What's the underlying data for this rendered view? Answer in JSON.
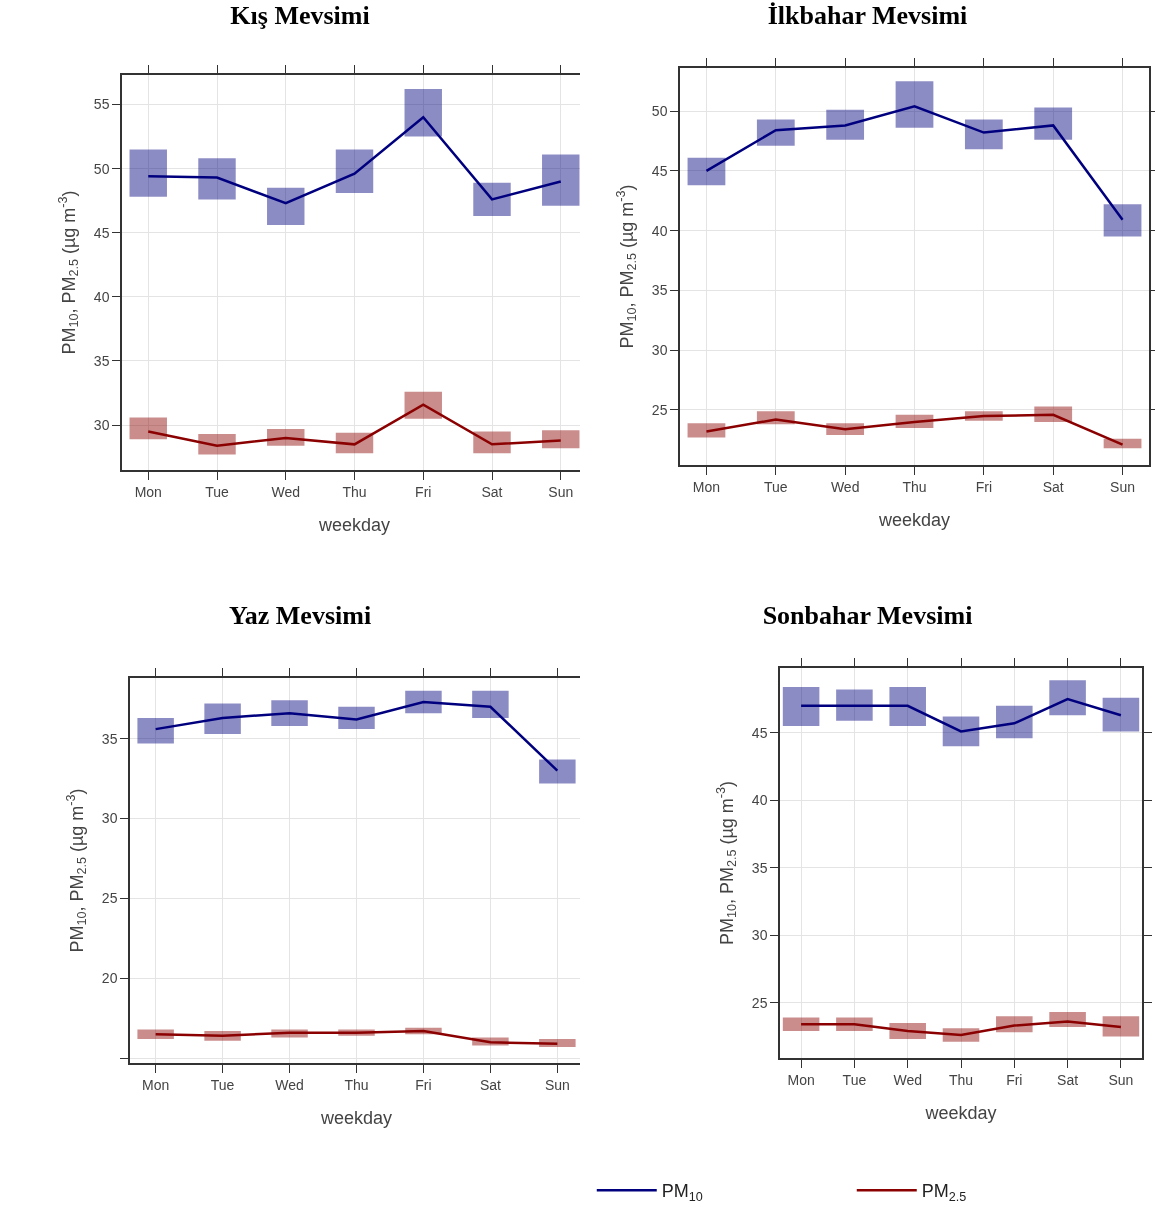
{
  "chart_data": [
    {
      "type": "line",
      "title": "Kış Mevsimi",
      "xlabel": "weekday",
      "ylabel": "PM$_{10}$, PM$_{2.5}$ (µg m$^{-3}$)",
      "categories": [
        "Mon",
        "Tue",
        "Wed",
        "Thu",
        "Fri",
        "Sat",
        "Sun"
      ],
      "ylim": [
        26.5,
        57.3
      ],
      "yticks": [
        30,
        35,
        40,
        45,
        50,
        55
      ],
      "grid": true,
      "series": [
        {
          "color": "#00007f",
          "values": [
            49.4,
            49.3,
            47.3,
            49.6,
            54,
            47.6,
            49
          ],
          "errors": [
            [
              47.8,
              51.5
            ],
            [
              47.6,
              50.8
            ],
            [
              45.6,
              48.5
            ],
            [
              48.1,
              51.5
            ],
            [
              52.5,
              56.2
            ],
            [
              46.3,
              48.9
            ],
            [
              47.1,
              51.1
            ]
          ]
        },
        {
          "color": "#8b0000",
          "values": [
            29.5,
            28.4,
            29,
            28.5,
            31.6,
            28.5,
            28.8
          ],
          "errors": [
            [
              28.9,
              30.6
            ],
            [
              27.7,
              29.3
            ],
            [
              28.4,
              29.7
            ],
            [
              27.8,
              29.4
            ],
            [
              30.5,
              32.6
            ],
            [
              27.8,
              29.5
            ],
            [
              28.2,
              29.6
            ]
          ]
        }
      ]
    },
    {
      "type": "line",
      "title": "İlkbahar Mevsimi",
      "xlabel": "weekday",
      "ylabel": "PM$_{10}$, PM$_{2.5}$ (µg m$^{-3}$)",
      "categories": [
        "Mon",
        "Tue",
        "Wed",
        "Thu",
        "Fri",
        "Sat",
        "Sun"
      ],
      "ylim": [
        20.4,
        53.6
      ],
      "yticks": [
        25,
        30,
        35,
        40,
        45,
        50
      ],
      "grid": true,
      "series": [
        {
          "color": "#00007f",
          "values": [
            45,
            48.4,
            48.8,
            50.4,
            48.2,
            48.8,
            40.9
          ],
          "errors": [
            [
              43.8,
              46.1
            ],
            [
              47.1,
              49.3
            ],
            [
              47.6,
              50.1
            ],
            [
              48.6,
              52.5
            ],
            [
              46.8,
              49.3
            ],
            [
              47.6,
              50.3
            ],
            [
              39.5,
              42.2
            ]
          ]
        },
        {
          "color": "#8b0000",
          "values": [
            23.2,
            24.2,
            23.4,
            24,
            24.5,
            24.6,
            22.1
          ],
          "errors": [
            [
              22.7,
              23.9
            ],
            [
              23.8,
              24.9
            ],
            [
              22.9,
              23.9
            ],
            [
              23.5,
              24.6
            ],
            [
              24.1,
              24.9
            ],
            [
              24,
              25.3
            ],
            [
              21.8,
              22.6
            ]
          ]
        }
      ]
    },
    {
      "type": "line",
      "title": "Yaz Mevsimi",
      "xlabel": "weekday",
      "ylabel": "PM$_{10}$, PM$_{2.5}$ (µg m$^{-3}$)",
      "categories": [
        "Mon",
        "Tue",
        "Wed",
        "Thu",
        "Fri",
        "Sat",
        "Sun"
      ],
      "ylim": [
        14.7,
        38.8
      ],
      "yticks": [
        {
          "value": 15,
          "label": null
        },
        20,
        25,
        30,
        35
      ],
      "grid": true,
      "series": [
        {
          "color": "#00007f",
          "values": [
            35.6,
            36.3,
            36.6,
            36.2,
            37.3,
            37,
            33
          ],
          "errors": [
            [
              34.7,
              36.3
            ],
            [
              35.3,
              37.2
            ],
            [
              35.8,
              37.4
            ],
            [
              35.6,
              37
            ],
            [
              36.6,
              38
            ],
            [
              36.3,
              38
            ],
            [
              32.2,
              33.7
            ]
          ]
        },
        {
          "color": "#8b0000",
          "values": [
            16.5,
            16.4,
            16.6,
            16.6,
            16.7,
            16,
            15.9
          ],
          "errors": [
            [
              16.2,
              16.8
            ],
            [
              16.1,
              16.7
            ],
            [
              16.3,
              16.8
            ],
            [
              16.4,
              16.8
            ],
            [
              16.5,
              16.9
            ],
            [
              15.8,
              16.3
            ],
            [
              15.7,
              16.2
            ]
          ]
        }
      ]
    },
    {
      "type": "line",
      "title": "Sonbahar Mevsimi",
      "xlabel": "weekday",
      "ylabel": "PM$_{10}$, PM$_{2.5}$ (µg m$^{-3}$)",
      "categories": [
        "Mon",
        "Tue",
        "Wed",
        "Thu",
        "Fri",
        "Sat",
        "Sun"
      ],
      "ylim": [
        20.9,
        49.8
      ],
      "yticks": [
        25,
        30,
        35,
        40,
        45
      ],
      "grid": true,
      "legend": "bottom",
      "series": [
        {
          "name": "PM$_{10}$",
          "color": "#00007f",
          "values": [
            47,
            47,
            47,
            45.1,
            45.7,
            47.5,
            46.3
          ],
          "errors": [
            [
              45.5,
              48.4
            ],
            [
              45.9,
              48.2
            ],
            [
              45.5,
              48.4
            ],
            [
              44,
              46.2
            ],
            [
              44.6,
              47
            ],
            [
              46.3,
              48.9
            ],
            [
              45.1,
              47.6
            ]
          ]
        },
        {
          "name": "PM$_{2.5}$",
          "color": "#8b0000",
          "values": [
            23.4,
            23.4,
            22.9,
            22.6,
            23.3,
            23.6,
            23.2
          ],
          "errors": [
            [
              22.9,
              23.9
            ],
            [
              22.9,
              23.9
            ],
            [
              22.3,
              23.5
            ],
            [
              22.1,
              23.1
            ],
            [
              22.8,
              24
            ],
            [
              23.2,
              24.3
            ],
            [
              22.5,
              24
            ]
          ]
        }
      ]
    }
  ]
}
